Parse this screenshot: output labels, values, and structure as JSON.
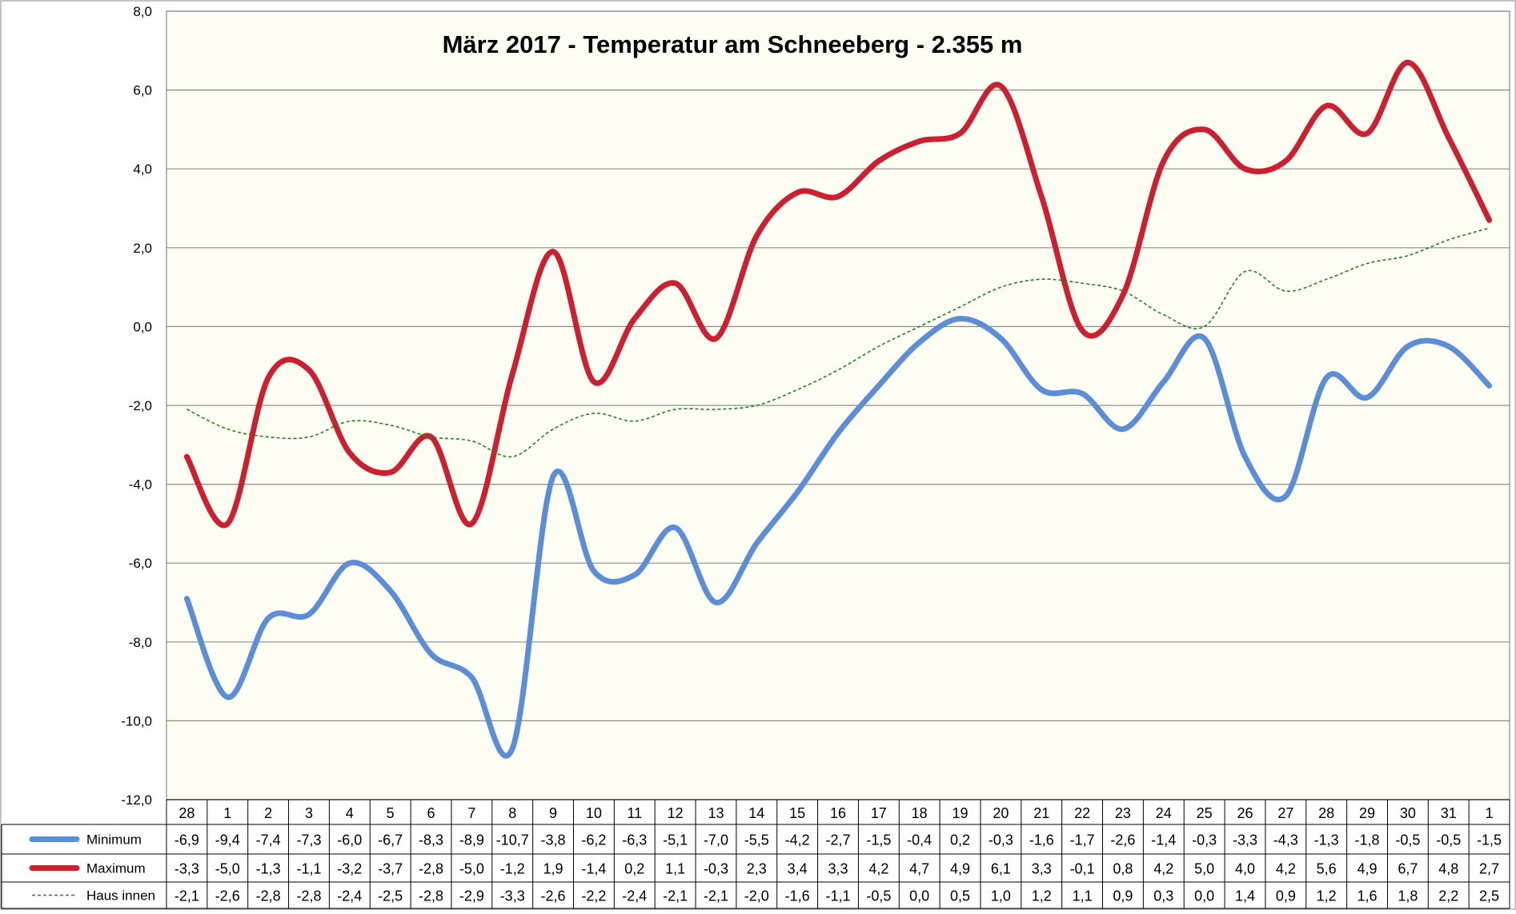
{
  "chart_data": {
    "type": "line",
    "title": "März 2017 - Temperatur am Schneeberg - 2.355 m",
    "xlabel": "",
    "ylabel": "",
    "ylim": [
      -12,
      8
    ],
    "yticks": [
      "8,0",
      "6,0",
      "4,0",
      "2,0",
      "0,0",
      "-2,0",
      "-4,0",
      "-6,0",
      "-8,0",
      "-10,0",
      "-12,0"
    ],
    "grid": true,
    "categories": [
      "28",
      "1",
      "2",
      "3",
      "4",
      "5",
      "6",
      "7",
      "8",
      "9",
      "10",
      "11",
      "12",
      "13",
      "14",
      "15",
      "16",
      "17",
      "18",
      "19",
      "20",
      "21",
      "22",
      "23",
      "24",
      "25",
      "26",
      "27",
      "28",
      "29",
      "30",
      "31",
      "1"
    ],
    "series": [
      {
        "name": "Minimum",
        "color": "#5B8ED6",
        "style": "solid",
        "values": [
          -6.9,
          -9.4,
          -7.4,
          -7.3,
          -6.0,
          -6.7,
          -8.3,
          -8.9,
          -10.7,
          -3.8,
          -6.2,
          -6.3,
          -5.1,
          -7.0,
          -5.5,
          -4.2,
          -2.7,
          -1.5,
          -0.4,
          0.2,
          -0.3,
          -1.6,
          -1.7,
          -2.6,
          -1.4,
          -0.3,
          -3.3,
          -4.3,
          -1.3,
          -1.8,
          -0.5,
          -0.5,
          -1.5
        ],
        "labels": [
          "-6,9",
          "-9,4",
          "-7,4",
          "-7,3",
          "-6,0",
          "-6,7",
          "-8,3",
          "-8,9",
          "-10,7",
          "-3,8",
          "-6,2",
          "-6,3",
          "-5,1",
          "-7,0",
          "-5,5",
          "-4,2",
          "-2,7",
          "-1,5",
          "-0,4",
          "0,2",
          "-0,3",
          "-1,6",
          "-1,7",
          "-2,6",
          "-1,4",
          "-0,3",
          "-3,3",
          "-4,3",
          "-1,3",
          "-1,8",
          "-0,5",
          "-0,5",
          "-1,5"
        ]
      },
      {
        "name": "Maximum",
        "color": "#CC1F2F",
        "style": "solid",
        "values": [
          -3.3,
          -5.0,
          -1.3,
          -1.1,
          -3.2,
          -3.7,
          -2.8,
          -5.0,
          -1.2,
          1.9,
          -1.4,
          0.2,
          1.1,
          -0.3,
          2.3,
          3.4,
          3.3,
          4.2,
          4.7,
          4.9,
          6.1,
          3.3,
          -0.1,
          0.8,
          4.2,
          5.0,
          4.0,
          4.2,
          5.6,
          4.9,
          6.7,
          4.8,
          2.7
        ],
        "labels": [
          "-3,3",
          "-5,0",
          "-1,3",
          "-1,1",
          "-3,2",
          "-3,7",
          "-2,8",
          "-5,0",
          "-1,2",
          "1,9",
          "-1,4",
          "0,2",
          "1,1",
          "-0,3",
          "2,3",
          "3,4",
          "3,3",
          "4,2",
          "4,7",
          "4,9",
          "6,1",
          "3,3",
          "-0,1",
          "0,8",
          "4,2",
          "5,0",
          "4,0",
          "4,2",
          "5,6",
          "4,9",
          "6,7",
          "4,8",
          "2,7"
        ]
      },
      {
        "name": "Haus innen",
        "color": "#1A8A1A",
        "style": "dashed",
        "values": [
          -2.1,
          -2.6,
          -2.8,
          -2.8,
          -2.4,
          -2.5,
          -2.8,
          -2.9,
          -3.3,
          -2.6,
          -2.2,
          -2.4,
          -2.1,
          -2.1,
          -2.0,
          -1.6,
          -1.1,
          -0.5,
          0.0,
          0.5,
          1.0,
          1.2,
          1.1,
          0.9,
          0.3,
          0.0,
          1.4,
          0.9,
          1.2,
          1.6,
          1.8,
          2.2,
          2.5
        ],
        "labels": [
          "-2,1",
          "-2,6",
          "-2,8",
          "-2,8",
          "-2,4",
          "-2,5",
          "-2,8",
          "-2,9",
          "-3,3",
          "-2,6",
          "-2,2",
          "-2,4",
          "-2,1",
          "-2,1",
          "-2,0",
          "-1,6",
          "-1,1",
          "-0,5",
          "0,0",
          "0,5",
          "1,0",
          "1,2",
          "1,1",
          "0,9",
          "0,3",
          "0,0",
          "1,4",
          "0,9",
          "1,2",
          "1,6",
          "1,8",
          "2,2",
          "2,5"
        ]
      }
    ]
  }
}
